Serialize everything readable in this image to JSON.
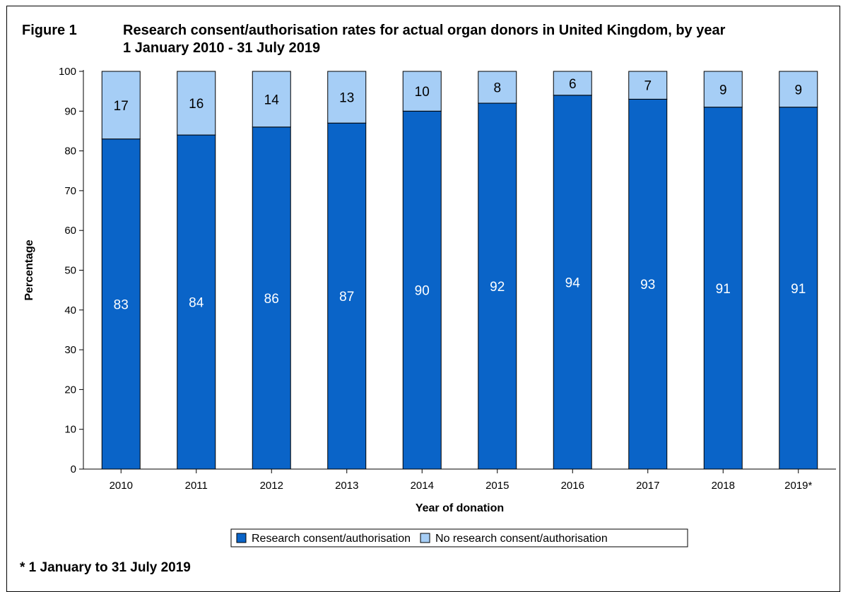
{
  "header": {
    "figure_label": "Figure 1",
    "title_line1": "Research consent/authorisation rates for actual organ donors in United Kingdom, by year",
    "title_line2": "1 January 2010 - 31 July 2019"
  },
  "footnote": "* 1 January to 31 July 2019",
  "chart_data": {
    "type": "bar",
    "stacked": true,
    "categories": [
      "2010",
      "2011",
      "2012",
      "2013",
      "2014",
      "2015",
      "2016",
      "2017",
      "2018",
      "2019*"
    ],
    "series": [
      {
        "name": "Research consent/authorisation",
        "values": [
          83,
          84,
          86,
          87,
          90,
          92,
          94,
          93,
          91,
          91
        ],
        "color": "#0a64c8"
      },
      {
        "name": "No research consent/authorisation",
        "values": [
          17,
          16,
          14,
          13,
          10,
          8,
          6,
          7,
          9,
          9
        ],
        "color": "#a6cef6"
      }
    ],
    "xlabel": "Year of donation",
    "ylabel": "Percentage",
    "ylim": [
      0,
      100
    ],
    "yticks": [
      0,
      10,
      20,
      30,
      40,
      50,
      60,
      70,
      80,
      90,
      100
    ],
    "legend_position": "bottom-center",
    "grid": false
  }
}
